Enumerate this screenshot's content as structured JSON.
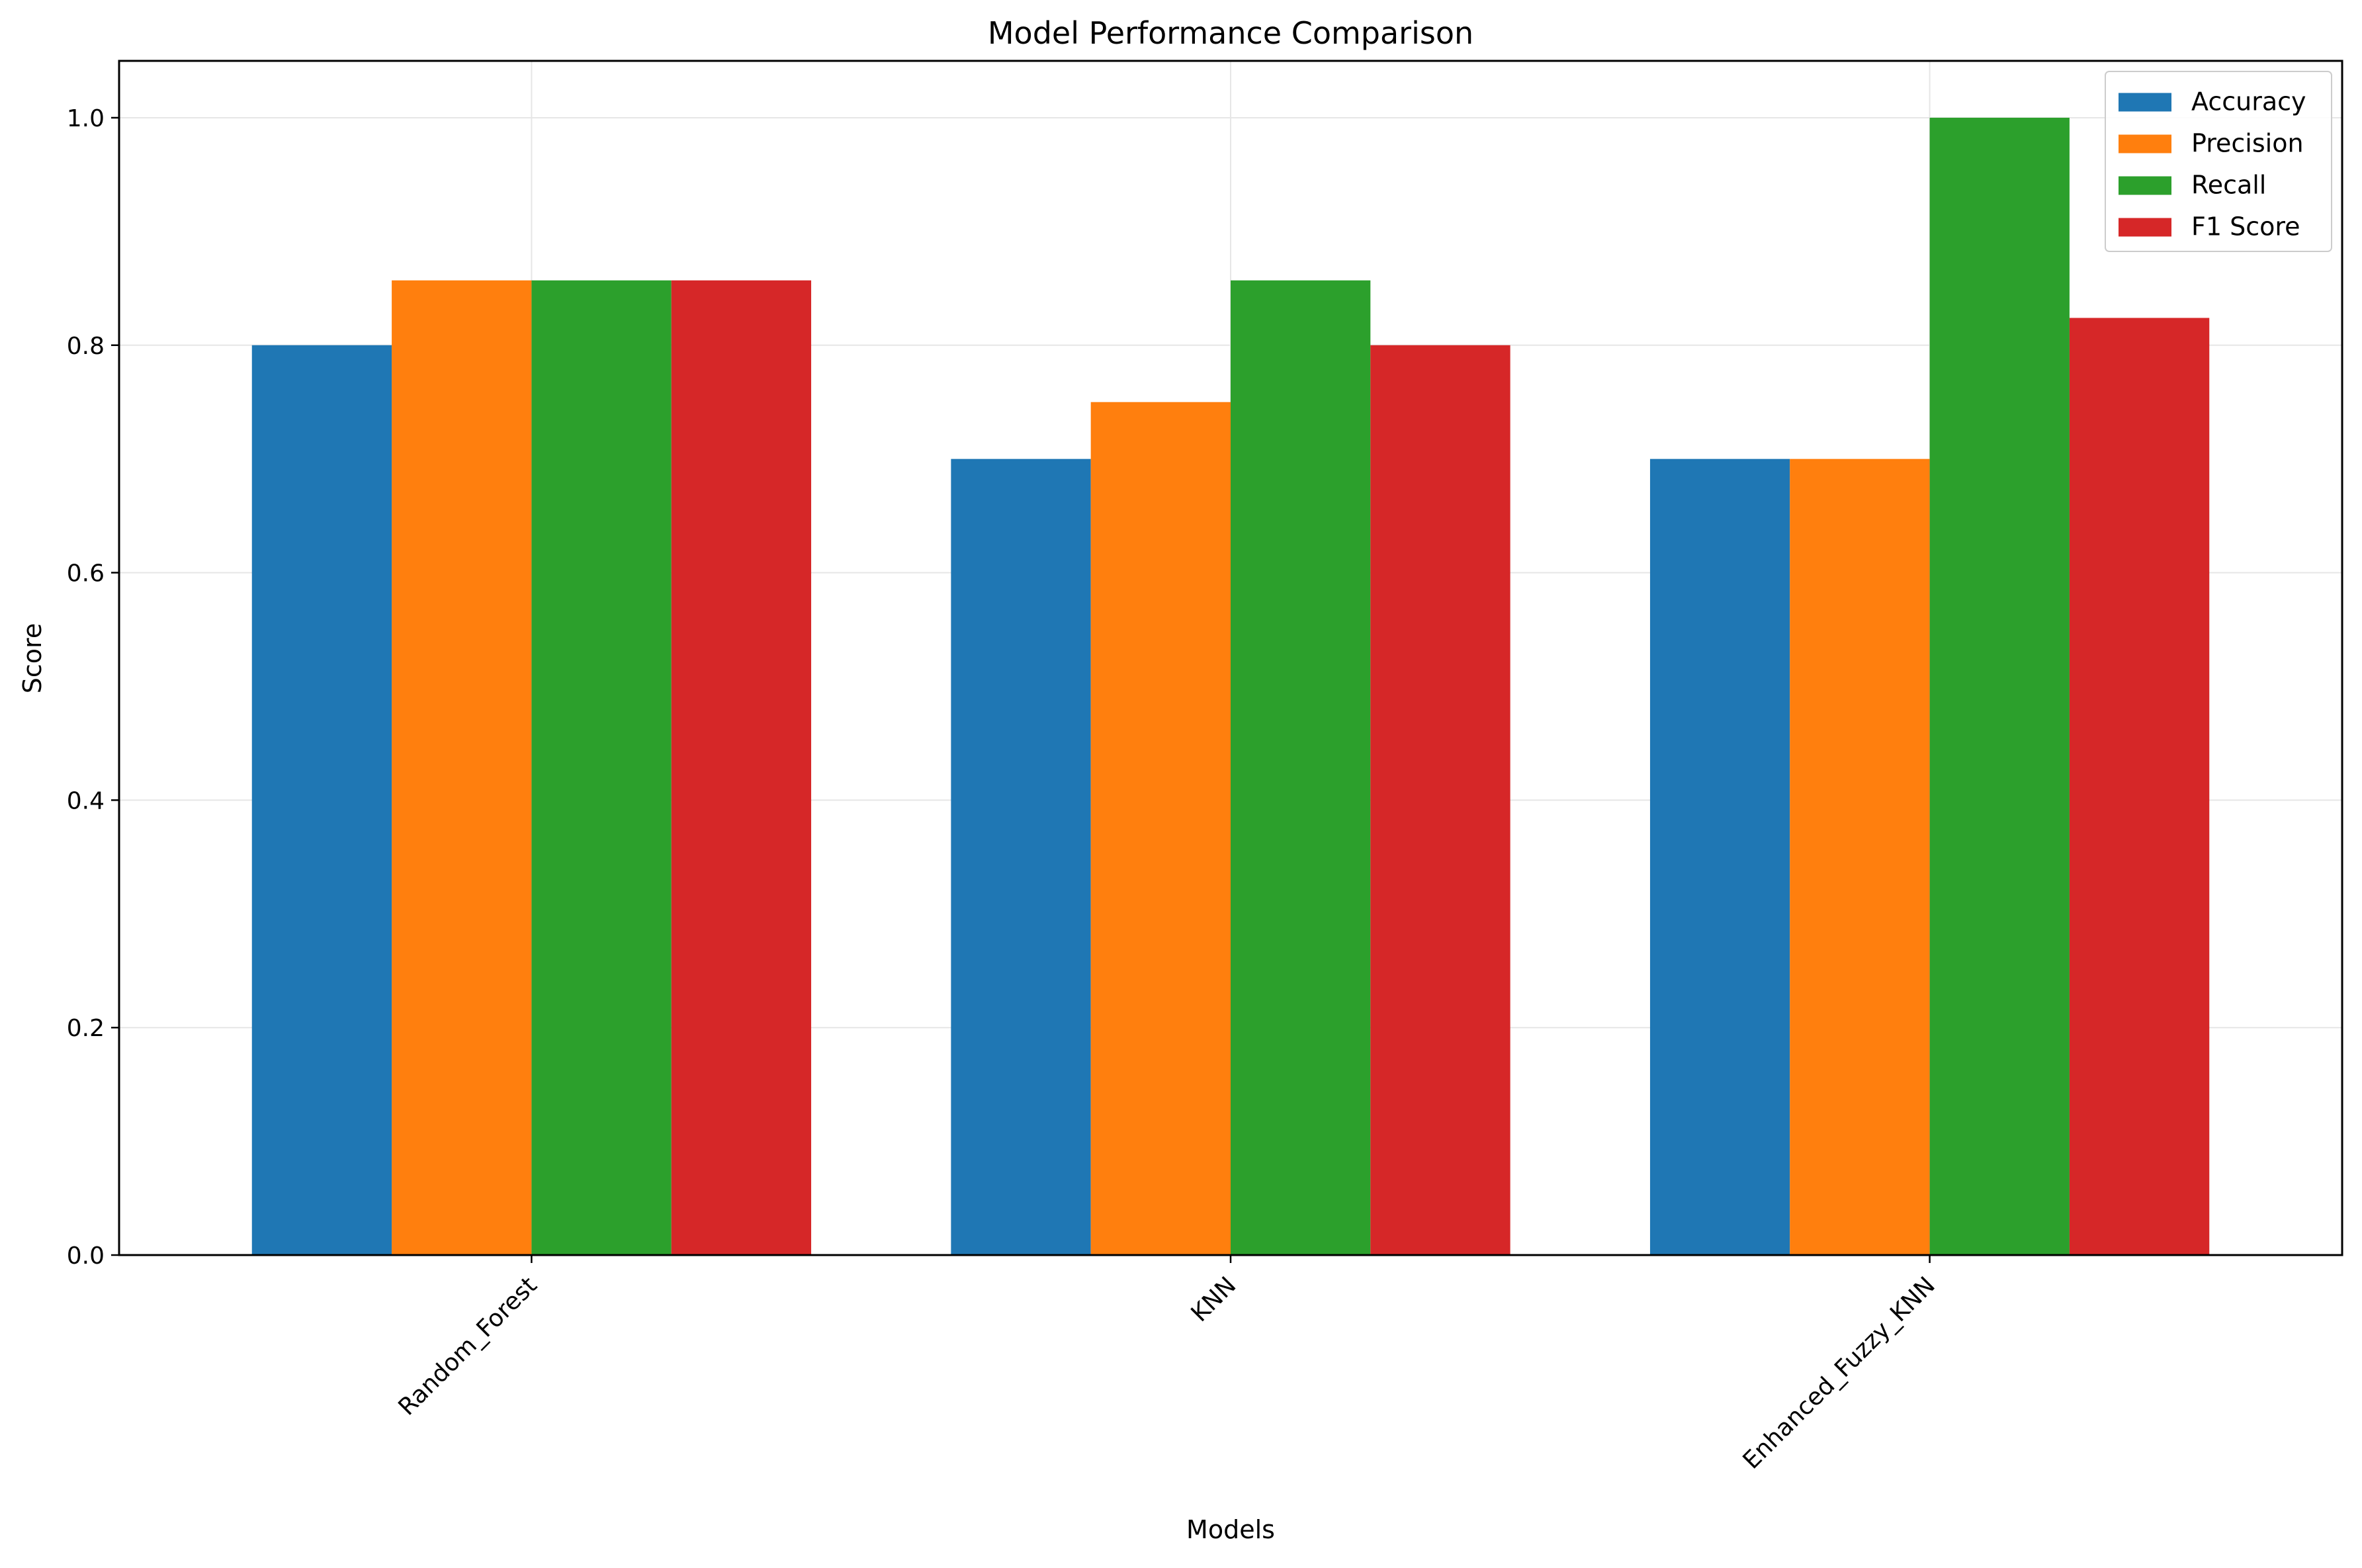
{
  "chart_data": {
    "type": "bar",
    "title": "Model Performance Comparison",
    "xlabel": "Models",
    "ylabel": "Score",
    "categories": [
      "Random_Forest",
      "KNN",
      "Enhanced_Fuzzy_KNN"
    ],
    "series": [
      {
        "name": "Accuracy",
        "color": "#1f77b4",
        "values": [
          0.8,
          0.7,
          0.7
        ]
      },
      {
        "name": "Precision",
        "color": "#ff7f0e",
        "values": [
          0.857,
          0.75,
          0.7
        ]
      },
      {
        "name": "Recall",
        "color": "#2ca02c",
        "values": [
          0.857,
          0.857,
          1.0
        ]
      },
      {
        "name": "F1 Score",
        "color": "#d62728",
        "values": [
          0.857,
          0.8,
          0.824
        ]
      }
    ],
    "ylim": [
      0,
      1.05
    ],
    "yticks": [
      "0.0",
      "0.2",
      "0.4",
      "0.6",
      "0.8",
      "1.0"
    ],
    "grid": true,
    "legend_position": "top-right",
    "xtick_rotation": "45 degrees"
  }
}
